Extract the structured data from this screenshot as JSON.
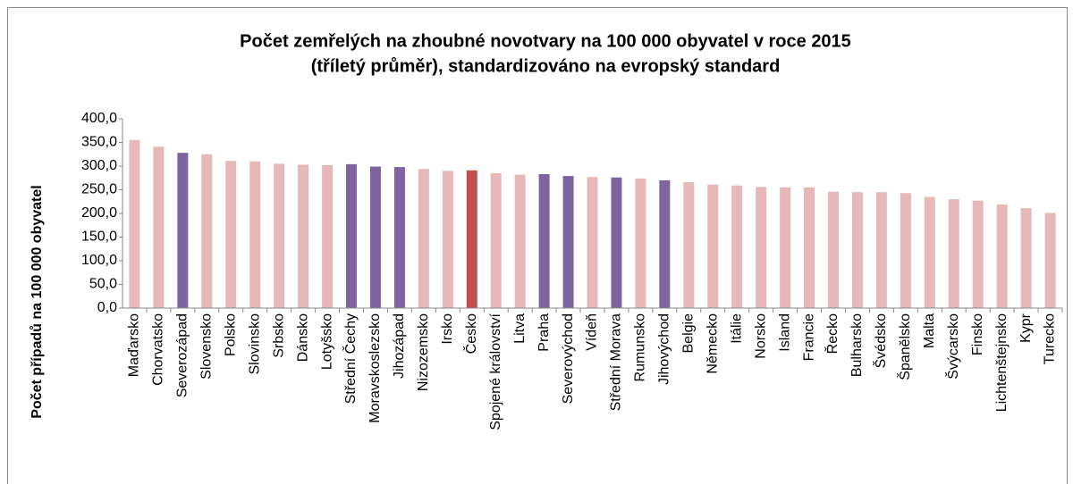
{
  "chart_data": {
    "type": "bar",
    "title": [
      "Počet zemřelých na zhoubné novotvary na 100 000 obyvatel v roce 2015",
      "(tříletý průměr), standardizováno na evropský standard"
    ],
    "y_label": "Počet případů na 100 000 obyvatel",
    "categories": [
      "Maďarsko",
      "Chorvatsko",
      "Severozápad",
      "Slovensko",
      "Polsko",
      "Slovinsko",
      "Srbsko",
      "Dánsko",
      "Lotyšsko",
      "Střední Čechy",
      "Moravskoslezsko",
      "Jihozápad",
      "Nizozemsko",
      "Irsko",
      "Česko",
      "Spojené království",
      "Litva",
      "Praha",
      "Severovýchod",
      "Vídeň",
      "Střední Morava",
      "Rumunsko",
      "Jihovýchod",
      "Belgie",
      "Německo",
      "Itálie",
      "Norsko",
      "Island",
      "Francie",
      "Řecko",
      "Bulharsko",
      "Švédsko",
      "Španělsko",
      "Malta",
      "Švýcarsko",
      "Finsko",
      "Lichtenštejnsko",
      "Kypr",
      "Turecko"
    ],
    "values": [
      355,
      341,
      328,
      325,
      311,
      310,
      305,
      303,
      302,
      304,
      299,
      298,
      294,
      290,
      291,
      285,
      282,
      283,
      279,
      277,
      276,
      274,
      270,
      266,
      261,
      259,
      256,
      255,
      255,
      246,
      245,
      245,
      243,
      235,
      230,
      227,
      219,
      211,
      201
    ],
    "colors": [
      "#e6b9b8",
      "#e6b9b8",
      "#8064a2",
      "#e6b9b8",
      "#e6b9b8",
      "#e6b9b8",
      "#e6b9b8",
      "#e6b9b8",
      "#e6b9b8",
      "#8064a2",
      "#8064a2",
      "#8064a2",
      "#e6b9b8",
      "#e6b9b8",
      "#c0504d",
      "#e6b9b8",
      "#e6b9b8",
      "#8064a2",
      "#8064a2",
      "#e6b9b8",
      "#8064a2",
      "#e6b9b8",
      "#8064a2",
      "#e6b9b8",
      "#e6b9b8",
      "#e6b9b8",
      "#e6b9b8",
      "#e6b9b8",
      "#e6b9b8",
      "#e6b9b8",
      "#e6b9b8",
      "#e6b9b8",
      "#e6b9b8",
      "#e6b9b8",
      "#e6b9b8",
      "#e6b9b8",
      "#e6b9b8",
      "#e6b9b8",
      "#e6b9b8"
    ],
    "ylim": [
      0,
      400
    ],
    "yticks": [
      {
        "value": 0,
        "label": "0,0"
      },
      {
        "value": 50,
        "label": "50,0"
      },
      {
        "value": 100,
        "label": "100,0"
      },
      {
        "value": 150,
        "label": "150,0"
      },
      {
        "value": 200,
        "label": "200,0"
      },
      {
        "value": 250,
        "label": "250,0"
      },
      {
        "value": 300,
        "label": "300,0"
      },
      {
        "value": 350,
        "label": "350,0"
      },
      {
        "value": 400,
        "label": "400,0"
      }
    ],
    "grid": false
  }
}
